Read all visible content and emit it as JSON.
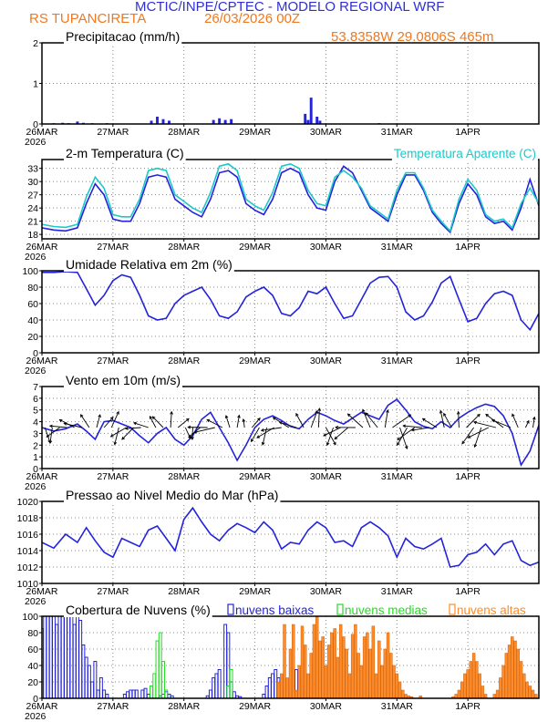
{
  "header": {
    "title": "MCTIC/INPE/CPTEC - MODELO REGIONAL WRF",
    "station": "RS TUPANCIRETA",
    "run": "26/03/2026 00Z",
    "location": "53.8358W 29.0806S 465m"
  },
  "colors": {
    "blue": "#2323dc",
    "cyan": "#1ec8c8",
    "green": "#22dd22",
    "orange": "#ff8c28",
    "title_blue": "#3030d0",
    "title_orange": "#f07820"
  },
  "x_axis": {
    "tick_labels": [
      "26MAR",
      "27MAR",
      "28MAR",
      "29MAR",
      "30MAR",
      "31MAR",
      "1APR"
    ],
    "year_label": "2026"
  },
  "chart_data": [
    {
      "id": "precip",
      "type": "bar",
      "title": "Precipitacao (mm/h)",
      "x_unit": "hours since 26/03/2026 00Z",
      "ylim": [
        0,
        2
      ],
      "yticks": [
        "0",
        "1",
        "2"
      ],
      "series": [
        {
          "name": "precipitation",
          "color": "blue",
          "x": [
            4,
            7,
            9,
            12,
            14,
            17,
            22,
            27,
            37,
            39,
            41,
            43,
            58,
            60,
            62,
            64,
            89,
            90,
            91,
            93,
            94,
            114,
            134
          ],
          "values": [
            0.02,
            0.03,
            0.02,
            0.06,
            0.03,
            0.02,
            0.02,
            0.01,
            0.08,
            0.18,
            0.12,
            0.08,
            0.1,
            0.14,
            0.1,
            0.12,
            0.25,
            0.1,
            0.65,
            0.18,
            0.08,
            0.02,
            0.01
          ]
        }
      ]
    },
    {
      "id": "temperature",
      "type": "line",
      "title": "2-m Temperatura (C)",
      "ylim": [
        17,
        35
      ],
      "yticks": [
        "18",
        "21",
        "24",
        "27",
        "30",
        "33"
      ],
      "series": [
        {
          "name": "2-m Temperatura (C)",
          "color": "blue",
          "x": [
            0,
            4,
            8,
            12,
            15,
            18,
            21,
            24,
            27,
            30,
            33,
            36,
            39,
            42,
            45,
            48,
            51,
            54,
            57,
            60,
            63,
            66,
            69,
            72,
            75,
            78,
            81,
            84,
            87,
            90,
            93,
            96,
            99,
            102,
            105,
            108,
            111,
            114,
            117,
            120,
            123,
            126,
            129,
            132,
            135,
            138,
            141,
            144,
            147,
            150,
            153,
            156,
            159,
            162,
            165,
            168
          ],
          "values": [
            19.5,
            19,
            18.8,
            19.5,
            25,
            29.5,
            27,
            21.5,
            21,
            21,
            25,
            31,
            31.5,
            31,
            26,
            24.5,
            23,
            22,
            26,
            32,
            32.5,
            31,
            25,
            23.5,
            22.5,
            26,
            32,
            33,
            32,
            27,
            24,
            23.5,
            30,
            33.5,
            32,
            28,
            24,
            22.5,
            21,
            27,
            31.5,
            31.5,
            28,
            23,
            20.5,
            18.5,
            25,
            29.5,
            27,
            22,
            20.5,
            21,
            19,
            24,
            30.5,
            24.5
          ]
        },
        {
          "name": "Temperatura Aparente (C)",
          "color": "cyan",
          "x": [
            0,
            4,
            8,
            12,
            15,
            18,
            21,
            24,
            27,
            30,
            33,
            36,
            39,
            42,
            45,
            48,
            51,
            54,
            57,
            60,
            63,
            66,
            69,
            72,
            75,
            78,
            81,
            84,
            87,
            90,
            93,
            96,
            99,
            102,
            105,
            108,
            111,
            114,
            117,
            120,
            123,
            126,
            129,
            132,
            135,
            138,
            141,
            144,
            147,
            150,
            153,
            156,
            159,
            162,
            165,
            168
          ],
          "values": [
            20.3,
            19.8,
            19.6,
            20.3,
            26.5,
            31,
            28.5,
            22.5,
            22,
            22,
            26,
            32.5,
            33,
            32.5,
            27,
            25.5,
            24,
            23,
            27.5,
            33.5,
            34,
            32.5,
            26,
            24.5,
            23.5,
            27.5,
            33.5,
            34,
            33,
            28,
            25,
            24.5,
            31,
            32.5,
            31,
            28.5,
            24.5,
            23,
            21.5,
            28,
            32,
            32,
            28.5,
            23.5,
            21,
            18.8,
            26,
            30.5,
            28,
            22.5,
            21,
            21.5,
            19.5,
            25,
            28.5,
            25
          ]
        }
      ]
    },
    {
      "id": "humidity",
      "type": "line",
      "title": "Umidade Relativa em 2m (%)",
      "ylim": [
        0,
        100
      ],
      "yticks": [
        "0",
        "20",
        "40",
        "60",
        "80",
        "100"
      ],
      "series": [
        {
          "name": "relative humidity",
          "color": "blue",
          "x": [
            0,
            4,
            8,
            12,
            15,
            18,
            21,
            24,
            27,
            30,
            33,
            36,
            39,
            42,
            45,
            48,
            51,
            54,
            57,
            60,
            63,
            66,
            69,
            72,
            75,
            78,
            81,
            84,
            87,
            90,
            93,
            96,
            99,
            102,
            105,
            108,
            111,
            114,
            117,
            120,
            123,
            126,
            129,
            132,
            135,
            138,
            141,
            144,
            147,
            150,
            153,
            156,
            159,
            162,
            165,
            168
          ],
          "values": [
            98,
            98,
            99,
            98,
            78,
            58,
            70,
            88,
            95,
            92,
            70,
            45,
            40,
            42,
            60,
            70,
            75,
            80,
            65,
            45,
            42,
            50,
            68,
            75,
            80,
            70,
            48,
            45,
            55,
            75,
            72,
            80,
            60,
            42,
            45,
            65,
            85,
            92,
            93,
            80,
            50,
            40,
            45,
            62,
            85,
            93,
            65,
            38,
            42,
            60,
            72,
            75,
            70,
            40,
            28,
            48
          ]
        }
      ]
    },
    {
      "id": "wind",
      "type": "line",
      "title": "Vento em 10m (m/s)",
      "ylim": [
        0,
        7
      ],
      "yticks": [
        "0",
        "1",
        "2",
        "3",
        "4",
        "5",
        "6",
        "7"
      ],
      "series": [
        {
          "name": "wind speed",
          "color": "blue",
          "x": [
            0,
            4,
            8,
            12,
            15,
            18,
            21,
            24,
            27,
            30,
            33,
            36,
            39,
            42,
            45,
            48,
            51,
            54,
            57,
            60,
            63,
            66,
            69,
            72,
            75,
            78,
            81,
            84,
            87,
            90,
            93,
            96,
            99,
            102,
            105,
            108,
            111,
            114,
            117,
            120,
            123,
            126,
            129,
            132,
            135,
            138,
            141,
            144,
            147,
            150,
            153,
            156,
            159,
            162,
            165,
            168
          ],
          "values": [
            3.5,
            3.2,
            3.4,
            3.8,
            3.2,
            2.5,
            4,
            4.1,
            3.8,
            3.5,
            2.8,
            2.2,
            3,
            3.5,
            2.5,
            2,
            2.8,
            4.2,
            4.8,
            3.5,
            2.2,
            0.7,
            2,
            3.5,
            4.2,
            4.5,
            4.1,
            3.6,
            3.4,
            4.2,
            4.8,
            4.5,
            4.1,
            3.8,
            4.3,
            4.8,
            4.5,
            4.2,
            5.4,
            5.9,
            5,
            4,
            3.6,
            3.4,
            4,
            3.5,
            4.3,
            4.8,
            5.2,
            5.5,
            5.3,
            4.5,
            3,
            0.3,
            1.5,
            3.7
          ]
        }
      ]
    },
    {
      "id": "pressure",
      "type": "line",
      "title": "Pressao ao Nivel Medio do Mar (hPa)",
      "ylim": [
        1010,
        1020
      ],
      "yticks": [
        "1010",
        "1012",
        "1014",
        "1016",
        "1018",
        "1020"
      ],
      "series": [
        {
          "name": "mean sea level pressure",
          "color": "blue",
          "x": [
            0,
            4,
            8,
            12,
            15,
            18,
            21,
            24,
            27,
            30,
            33,
            36,
            39,
            42,
            45,
            48,
            51,
            54,
            57,
            60,
            63,
            66,
            69,
            72,
            75,
            78,
            81,
            84,
            87,
            90,
            93,
            96,
            99,
            102,
            105,
            108,
            111,
            114,
            117,
            120,
            123,
            126,
            129,
            132,
            135,
            138,
            141,
            144,
            147,
            150,
            153,
            156,
            159,
            162,
            165,
            168
          ],
          "values": [
            1015,
            1014.3,
            1016,
            1015,
            1016.8,
            1015.2,
            1013.8,
            1013.2,
            1015.5,
            1015,
            1014.5,
            1016.5,
            1017,
            1015.5,
            1014,
            1017.8,
            1019.2,
            1017.5,
            1016,
            1015.2,
            1016.5,
            1017.3,
            1016.8,
            1016.2,
            1017.5,
            1016.5,
            1014.2,
            1015,
            1014.8,
            1016.5,
            1017.5,
            1016.8,
            1015,
            1015.2,
            1014.5,
            1016.8,
            1017.5,
            1016.8,
            1015.8,
            1013.2,
            1015.5,
            1014.5,
            1014.2,
            1014.8,
            1015.5,
            1012,
            1012.2,
            1013.5,
            1013.8,
            1014.8,
            1013.5,
            1014.8,
            1015.2,
            1012.8,
            1012.2,
            1012.6
          ]
        }
      ]
    },
    {
      "id": "clouds",
      "type": "bar",
      "title": "Cobertura de Nuvens (%)",
      "ylim": [
        0,
        100
      ],
      "yticks": [
        "0",
        "20",
        "40",
        "60",
        "80",
        "100"
      ],
      "legend": [
        "nuvens baixas",
        "nuvens medias",
        "nuvens altas"
      ],
      "series": [
        {
          "name": "nuvens baixas",
          "color": "blue",
          "style": "outline",
          "x": [
            0,
            1,
            2,
            3,
            4,
            5,
            6,
            7,
            8,
            9,
            10,
            11,
            12,
            13,
            14,
            15,
            16,
            17,
            18,
            19,
            20,
            21,
            22,
            28,
            29,
            30,
            31,
            32,
            34,
            35,
            36,
            40,
            41,
            42,
            43,
            44,
            56,
            57,
            58,
            59,
            60,
            62,
            63,
            64,
            65,
            66,
            67,
            75,
            76,
            77,
            78,
            79,
            80,
            81,
            84,
            85,
            86,
            87,
            88,
            89,
            90,
            110,
            111,
            112,
            145,
            146,
            147,
            148
          ],
          "values": [
            85,
            100,
            100,
            100,
            100,
            90,
            100,
            100,
            100,
            100,
            100,
            90,
            100,
            95,
            65,
            50,
            40,
            20,
            45,
            10,
            25,
            10,
            5,
            5,
            8,
            10,
            10,
            10,
            10,
            12,
            5,
            3,
            5,
            8,
            5,
            3,
            3,
            10,
            25,
            30,
            35,
            90,
            80,
            20,
            8,
            3,
            2,
            5,
            15,
            25,
            30,
            35,
            25,
            10,
            8,
            25,
            35,
            30,
            15,
            8,
            3,
            2,
            3,
            2,
            3,
            8,
            5,
            3
          ]
        },
        {
          "name": "nuvens medias",
          "color": "green",
          "style": "outline",
          "x": [
            37,
            38,
            39,
            40,
            41,
            42,
            63,
            64,
            85,
            86,
            87
          ],
          "values": [
            15,
            30,
            70,
            80,
            45,
            10,
            15,
            35,
            5,
            8,
            10
          ]
        },
        {
          "name": "nuvens altas",
          "color": "orange",
          "style": "filled",
          "x": [
            80,
            81,
            82,
            83,
            84,
            85,
            86,
            87,
            88,
            89,
            90,
            91,
            92,
            93,
            94,
            95,
            96,
            97,
            98,
            99,
            100,
            101,
            102,
            103,
            104,
            105,
            106,
            107,
            108,
            109,
            110,
            111,
            112,
            113,
            114,
            115,
            116,
            117,
            118,
            119,
            120,
            121,
            122,
            123,
            124,
            125,
            126,
            127,
            128,
            129,
            130,
            131,
            132,
            133,
            134,
            135,
            136,
            137,
            138,
            139,
            140,
            141,
            142,
            143,
            144,
            145,
            146,
            147,
            148,
            149,
            150,
            151,
            152,
            153,
            154,
            155,
            156,
            157,
            158,
            159,
            160,
            161,
            162,
            163,
            164,
            165,
            166,
            167
          ],
          "values": [
            20,
            30,
            90,
            25,
            60,
            90,
            10,
            40,
            88,
            65,
            30,
            55,
            90,
            100,
            70,
            75,
            40,
            65,
            80,
            85,
            50,
            90,
            75,
            60,
            30,
            78,
            90,
            55,
            40,
            75,
            80,
            60,
            88,
            30,
            70,
            40,
            60,
            80,
            55,
            40,
            30,
            20,
            10,
            5,
            3,
            2,
            0,
            0,
            3,
            0,
            0,
            0,
            0,
            0,
            0,
            0,
            0,
            0,
            0,
            2,
            5,
            10,
            20,
            30,
            35,
            45,
            55,
            45,
            30,
            15,
            5,
            0,
            0,
            5,
            10,
            25,
            40,
            55,
            65,
            75,
            70,
            60,
            45,
            30,
            20,
            15,
            10,
            5
          ]
        }
      ]
    }
  ]
}
